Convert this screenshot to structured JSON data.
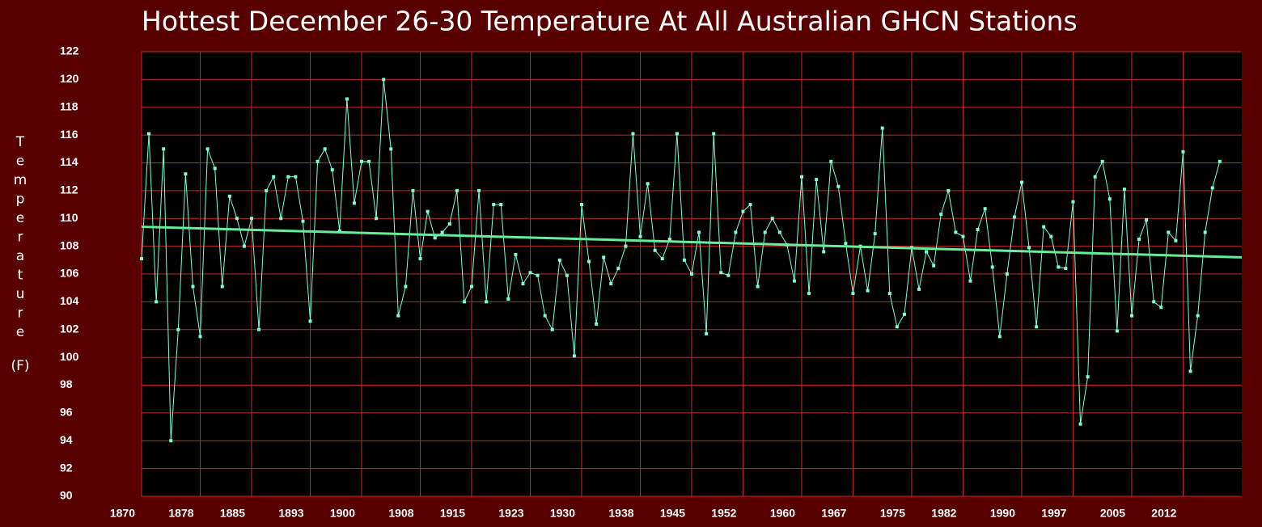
{
  "chart_data": {
    "type": "line",
    "title": "Hottest December 26-30 Temperature At All Australian GHCN Stations",
    "y_label": "Temperature",
    "y_unit": "(F)",
    "x": [
      1870,
      1871,
      1872,
      1873,
      1874,
      1875,
      1876,
      1877,
      1878,
      1879,
      1880,
      1881,
      1882,
      1883,
      1884,
      1885,
      1886,
      1887,
      1888,
      1889,
      1890,
      1891,
      1892,
      1893,
      1894,
      1895,
      1896,
      1897,
      1898,
      1899,
      1900,
      1901,
      1902,
      1903,
      1904,
      1905,
      1906,
      1907,
      1908,
      1909,
      1910,
      1911,
      1912,
      1913,
      1914,
      1915,
      1916,
      1917,
      1918,
      1919,
      1920,
      1921,
      1922,
      1923,
      1924,
      1925,
      1926,
      1927,
      1928,
      1929,
      1930,
      1931,
      1932,
      1933,
      1934,
      1935,
      1936,
      1937,
      1938,
      1939,
      1940,
      1941,
      1942,
      1943,
      1944,
      1945,
      1946,
      1947,
      1948,
      1949,
      1950,
      1951,
      1952,
      1953,
      1954,
      1955,
      1956,
      1957,
      1958,
      1959,
      1960,
      1961,
      1962,
      1963,
      1964,
      1965,
      1966,
      1967,
      1968,
      1969,
      1970,
      1971,
      1972,
      1973,
      1974,
      1975,
      1976,
      1977,
      1978,
      1979,
      1980,
      1981,
      1982,
      1983,
      1984,
      1985,
      1986,
      1987,
      1988,
      1989,
      1990,
      1991,
      1992,
      1993,
      1994,
      1995,
      1996,
      1997,
      1998,
      1999,
      2000,
      2001,
      2002,
      2003,
      2004,
      2005,
      2006,
      2007,
      2008,
      2009,
      2010,
      2011,
      2012,
      2013,
      2014,
      2015,
      2016,
      2017
    ],
    "series": [
      {
        "color": "#7fffd4",
        "values": [
          107.1,
          116.1,
          104.0,
          115.0,
          94.0,
          102.0,
          113.2,
          105.1,
          101.5,
          115.0,
          113.6,
          105.1,
          111.6,
          110.0,
          108.0,
          110.0,
          102.0,
          112.0,
          113.0,
          110.0,
          113.0,
          113.0,
          109.8,
          102.6,
          114.1,
          115.0,
          113.5,
          109.1,
          118.6,
          111.1,
          114.1,
          114.1,
          110.0,
          120.0,
          115.0,
          103.0,
          105.1,
          112.0,
          107.1,
          110.5,
          108.6,
          109.0,
          109.6,
          112.0,
          104.0,
          105.1,
          112.0,
          104.0,
          111.0,
          111.0,
          104.2,
          107.4,
          105.3,
          106.1,
          105.9,
          103.0,
          102.0,
          107.0,
          105.9,
          100.1,
          111.0,
          106.9,
          102.4,
          107.2,
          105.3,
          106.4,
          108.0,
          116.1,
          108.7,
          112.5,
          107.7,
          107.1,
          108.5,
          116.1,
          107.0,
          106.0,
          109.0,
          101.7,
          116.1,
          106.1,
          105.9,
          109.0,
          110.5,
          111.0,
          105.1,
          109.0,
          110.0,
          109.0,
          108.1,
          105.5,
          113.0,
          104.6,
          112.8,
          107.6,
          114.1,
          112.3,
          108.2,
          104.6,
          108.0,
          104.8,
          108.9,
          116.5,
          104.6,
          102.2,
          103.1,
          107.9,
          104.9,
          107.6,
          106.6,
          110.3,
          112.0,
          109.0,
          108.7,
          105.5,
          109.2,
          110.7,
          106.5,
          101.5,
          106.0,
          110.1,
          112.6,
          107.9,
          102.2,
          109.4,
          108.7,
          106.5,
          106.4,
          111.2,
          95.2,
          98.6,
          113.0,
          114.1,
          111.4,
          101.9,
          112.1,
          103.0,
          108.5,
          109.9,
          104.0,
          103.6,
          109.0,
          108.4,
          114.8,
          99.0,
          103.0,
          109.0,
          112.2,
          114.1
        ]
      }
    ],
    "trend": {
      "color": "#66ee99",
      "x": [
        1870,
        2020
      ],
      "values": [
        109.4,
        107.2
      ]
    },
    "xlim": [
      1870,
      2020
    ],
    "xticks": [
      1870,
      1878,
      1885,
      1893,
      1900,
      1908,
      1915,
      1923,
      1930,
      1938,
      1945,
      1952,
      1960,
      1967,
      1975,
      1982,
      1990,
      1997,
      2005,
      2012
    ],
    "ylim": [
      90,
      122
    ],
    "yticks": [
      90,
      92,
      94,
      96,
      98,
      100,
      102,
      104,
      106,
      108,
      110,
      112,
      114,
      116,
      118,
      120,
      122
    ],
    "grid": true,
    "grid_color": "#c02828",
    "background": "#580000",
    "plot_background": "#000000"
  }
}
